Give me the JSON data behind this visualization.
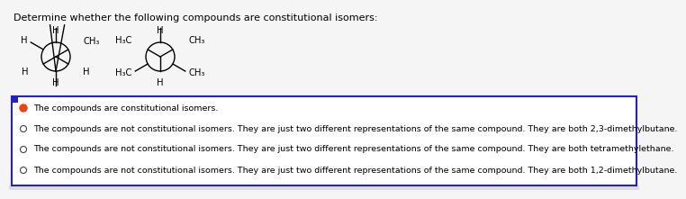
{
  "title": "Determine whether the following compounds are constitutional isomers:",
  "title_fontsize": 8.0,
  "options": [
    {
      "text": "The compounds are constitutional isomers.",
      "selected": true
    },
    {
      "text": "The compounds are not constitutional isomers. They are just two different representations of the same compound. They are both 2,3-dimethylbutane.",
      "selected": false
    },
    {
      "text": "The compounds are not constitutional isomers. They are just two different representations of the same compound. They are both tetramethylethane.",
      "selected": false
    },
    {
      "text": "The compounds are not constitutional isomers. They are just two different representations of the same compound. They are both 1,2-dimethylbutane.",
      "selected": false
    }
  ],
  "box_border_color": "#2222cc",
  "box_fill": "#ffffff",
  "selected_color": "#ee4411",
  "text_color": "#000000",
  "option_fontsize": 6.8,
  "bg_color": "#f5f5f5",
  "label_fontsize": 7.0,
  "molecule_label_fontsize": 7.2
}
